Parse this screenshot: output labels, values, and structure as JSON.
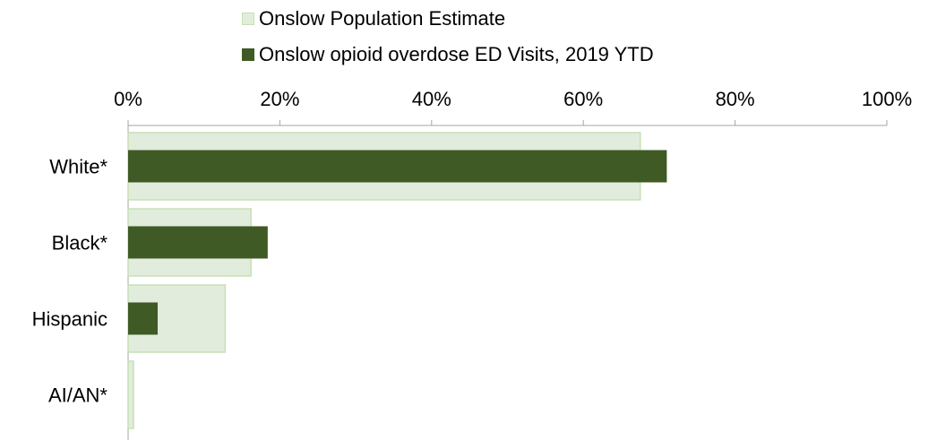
{
  "colors": {
    "population_fill": "#e2ecdd",
    "population_stroke": "#c6e0b4",
    "visits_fill": "#3f5a24",
    "axis": "#a6a6a6"
  },
  "legend": {
    "population_label": "Onslow Population Estimate",
    "visits_label": "Onslow opioid overdose ED Visits, 2019 YTD"
  },
  "chart_data": {
    "type": "bar",
    "orientation": "horizontal",
    "categories": [
      "White*",
      "Black*",
      "Hispanic",
      "AI/AN*"
    ],
    "series": [
      {
        "name": "Onslow Population Estimate",
        "values": [
          67.5,
          16.2,
          12.8,
          0.7
        ]
      },
      {
        "name": "Onslow opioid overdose ED Visits, 2019 YTD",
        "values": [
          71.0,
          18.4,
          3.9,
          0.0
        ]
      }
    ],
    "xlim": [
      0,
      100
    ],
    "x_ticks": [
      "0%",
      "20%",
      "40%",
      "60%",
      "80%",
      "100%"
    ],
    "axis_position": "top",
    "legend_position": "top",
    "grid": false
  }
}
